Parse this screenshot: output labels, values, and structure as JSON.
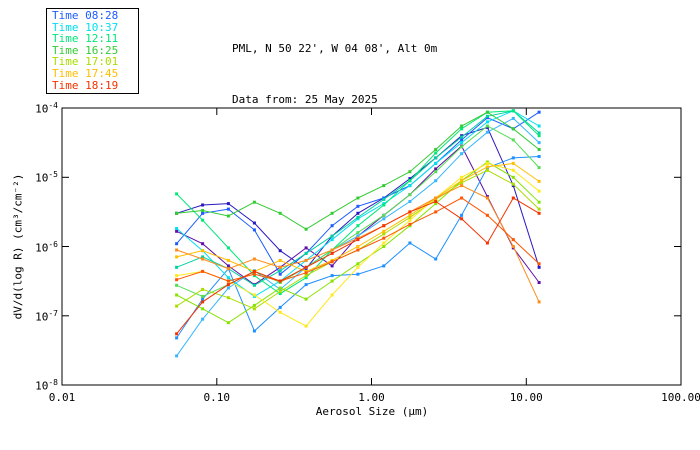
{
  "window": {
    "background": "#ffffff"
  },
  "header": {
    "title": "PML, N 50 22', W 04 08', Alt 0m",
    "subtitle": "Data from: 25 May 2025"
  },
  "legend": {
    "items": [
      {
        "label": "Time 08:28",
        "color": "#1c5cff"
      },
      {
        "label": "Time 10:37",
        "color": "#00e0f0"
      },
      {
        "label": "Time 12:11",
        "color": "#00e878"
      },
      {
        "label": "Time 16:25",
        "color": "#33cc33"
      },
      {
        "label": "Time 17:01",
        "color": "#aadd00"
      },
      {
        "label": "Time 17:45",
        "color": "#ffbe00"
      },
      {
        "label": "Time 18:19",
        "color": "#f53200"
      }
    ]
  },
  "chart_data": {
    "type": "line",
    "title": "PML, N 50 22', W 04 08', Alt 0m",
    "subtitle": "Data from: 25 May 2025",
    "xlabel": "Aerosol Size (μm)",
    "ylabel": "dV/d(log R) (cm³/cm⁻²)",
    "xscale": "log",
    "yscale": "log",
    "xlim": [
      0.01,
      100.0
    ],
    "ylim": [
      1e-08,
      0.0001
    ],
    "xlog_range": [
      -2,
      2
    ],
    "ylog_range": [
      -8,
      -4
    ],
    "grid": false,
    "legend_position": "top-left-outside",
    "marker": "square",
    "xticks": [
      {
        "value": 0.01,
        "label": "0.01"
      },
      {
        "value": 0.1,
        "label": "0.10"
      },
      {
        "value": 1.0,
        "label": "1.00"
      },
      {
        "value": 10.0,
        "label": "10.00"
      },
      {
        "value": 100.0,
        "label": "100.00"
      }
    ],
    "yticks": [
      {
        "exponent": -4,
        "label": "10^-4"
      },
      {
        "exponent": -5,
        "label": "10^-5"
      },
      {
        "exponent": -6,
        "label": "10^-6"
      },
      {
        "exponent": -7,
        "label": "10^-7"
      },
      {
        "exponent": -8,
        "label": "10^-8"
      }
    ],
    "x_sizes_um": [
      0.055,
      0.081,
      0.119,
      0.175,
      0.257,
      0.378,
      0.556,
      0.817,
      1.2,
      1.77,
      2.6,
      3.82,
      5.61,
      8.25,
      12.1
    ],
    "series": [
      {
        "name": "navy",
        "color": "#2a18c0",
        "log10_values": [
          -5.52,
          -5.4,
          -5.38,
          -5.66,
          -6.06,
          -6.32,
          -5.85,
          -5.52,
          -5.3,
          -5.02,
          -4.72,
          -4.4,
          -4.28,
          -5.12,
          -6.3
        ]
      },
      {
        "name": "purple",
        "color": "#5f10a8",
        "log10_values": [
          -5.78,
          -5.96,
          -6.28,
          -6.55,
          -6.3,
          -6.02,
          -6.28,
          -5.85,
          -5.55,
          -5.25,
          -4.88,
          -4.55,
          -5.28,
          -6.02,
          -6.52
        ]
      },
      {
        "name": "blue",
        "time": "08:28",
        "color": "#1c5cff",
        "log10_values": [
          -5.96,
          -5.52,
          -5.46,
          -5.76,
          -6.4,
          -6.1,
          -5.7,
          -5.42,
          -5.3,
          -5.12,
          -4.8,
          -4.46,
          -4.14,
          -4.3,
          -4.06
        ]
      },
      {
        "name": "dodger-blue",
        "color": "#1e90ff",
        "log10_values": [
          -7.32,
          -6.76,
          -6.32,
          -7.22,
          -6.88,
          -6.55,
          -6.42,
          -6.4,
          -6.28,
          -5.95,
          -6.18,
          -5.55,
          -4.86,
          -4.72,
          -4.7
        ]
      },
      {
        "name": "sky-blue",
        "color": "#38b6ff",
        "log10_values": [
          -7.58,
          -7.05,
          -6.6,
          -6.35,
          -6.62,
          -6.3,
          -6.05,
          -5.85,
          -5.6,
          -5.35,
          -5.05,
          -4.66,
          -4.35,
          -4.15,
          -4.5
        ]
      },
      {
        "name": "cyan",
        "time": "10:37",
        "color": "#00e0f0",
        "log10_values": [
          -5.74,
          -6.06,
          -6.45,
          -6.72,
          -6.5,
          -6.2,
          -5.9,
          -5.6,
          -5.38,
          -5.12,
          -4.8,
          -4.5,
          -4.2,
          -4.04,
          -4.26
        ]
      },
      {
        "name": "teal",
        "color": "#00d2a0",
        "log10_values": [
          -6.3,
          -6.15,
          -6.32,
          -6.56,
          -6.35,
          -6.1,
          -5.85,
          -5.58,
          -5.32,
          -5.05,
          -4.72,
          -4.42,
          -4.12,
          -4.04,
          -4.36
        ]
      },
      {
        "name": "spring-green",
        "time": "12:11",
        "color": "#00e878",
        "log10_values": [
          -5.24,
          -5.62,
          -6.02,
          -6.42,
          -6.68,
          -6.45,
          -6.05,
          -5.7,
          -5.4,
          -5.05,
          -4.65,
          -4.3,
          -4.06,
          -4.04,
          -4.4
        ]
      },
      {
        "name": "green",
        "time": "16:25",
        "color": "#33cc33",
        "log10_values": [
          -5.52,
          -5.48,
          -5.56,
          -5.36,
          -5.52,
          -5.75,
          -5.52,
          -5.3,
          -5.12,
          -4.92,
          -4.6,
          -4.26,
          -4.06,
          -4.3,
          -4.6
        ]
      },
      {
        "name": "light-green",
        "color": "#55dd55",
        "log10_values": [
          -6.56,
          -6.72,
          -6.55,
          -6.36,
          -6.52,
          -6.3,
          -6.05,
          -5.8,
          -5.55,
          -5.25,
          -4.92,
          -4.56,
          -4.26,
          -4.46,
          -4.86
        ]
      },
      {
        "name": "lime",
        "color": "#86e400",
        "log10_values": [
          -6.7,
          -6.9,
          -7.1,
          -6.85,
          -6.6,
          -6.76,
          -6.5,
          -6.25,
          -6.0,
          -5.7,
          -5.38,
          -5.05,
          -4.78,
          -5.0,
          -5.36
        ]
      },
      {
        "name": "yellow-green",
        "time": "17:01",
        "color": "#aadd00",
        "log10_values": [
          -6.86,
          -6.62,
          -6.74,
          -6.9,
          -6.65,
          -6.42,
          -6.22,
          -6.05,
          -5.82,
          -5.58,
          -5.32,
          -5.08,
          -4.9,
          -5.1,
          -5.46
        ]
      },
      {
        "name": "yellow",
        "color": "#ffe81c",
        "log10_values": [
          -6.42,
          -6.36,
          -6.5,
          -6.7,
          -6.95,
          -7.15,
          -6.7,
          -6.3,
          -5.95,
          -5.62,
          -5.3,
          -5.0,
          -4.8,
          -4.9,
          -5.2
        ]
      },
      {
        "name": "gold",
        "time": "17:45",
        "color": "#ffbe00",
        "log10_values": [
          -6.15,
          -6.06,
          -6.2,
          -6.36,
          -6.2,
          -6.36,
          -6.2,
          -6.0,
          -5.78,
          -5.55,
          -5.3,
          -5.05,
          -4.85,
          -4.8,
          -5.06
        ]
      },
      {
        "name": "orange",
        "color": "#ff8c1a",
        "log10_values": [
          -6.05,
          -6.18,
          -6.32,
          -6.18,
          -6.3,
          -6.2,
          -6.05,
          -5.88,
          -5.7,
          -5.5,
          -5.3,
          -5.12,
          -5.3,
          -6.0,
          -6.8
        ]
      },
      {
        "name": "orange-red",
        "color": "#ff5500",
        "log10_values": [
          -6.48,
          -6.36,
          -6.5,
          -6.4,
          -6.5,
          -6.38,
          -6.22,
          -6.05,
          -5.88,
          -5.68,
          -5.5,
          -5.3,
          -5.55,
          -5.9,
          -6.25
        ]
      },
      {
        "name": "red",
        "time": "18:19",
        "color": "#f53200",
        "log10_values": [
          -7.26,
          -6.8,
          -6.55,
          -6.36,
          -6.5,
          -6.3,
          -6.1,
          -5.9,
          -5.7,
          -5.5,
          -5.35,
          -5.6,
          -5.95,
          -5.3,
          -5.52
        ]
      }
    ]
  }
}
